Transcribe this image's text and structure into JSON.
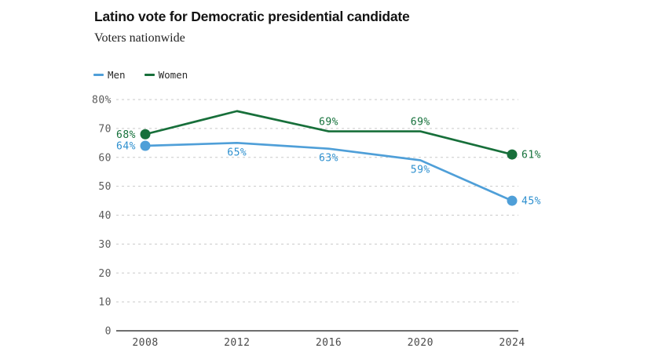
{
  "chart_data": {
    "type": "line",
    "title": "Latino vote for Democratic presidential candidate",
    "subtitle": "Voters nationwide",
    "x": [
      "2008",
      "2012",
      "2016",
      "2020",
      "2024"
    ],
    "series": [
      {
        "name": "Men",
        "color": "#4f9fd8",
        "label_color": "#2e90cf",
        "values": [
          64,
          65,
          63,
          59,
          45
        ],
        "point_labels": [
          "64%",
          "65%",
          "63%",
          "59%",
          "45%"
        ],
        "label_side": "below"
      },
      {
        "name": "Women",
        "color": "#176f3a",
        "label_color": "#14703a",
        "values": [
          68,
          76,
          69,
          69,
          61
        ],
        "point_labels": [
          "68%",
          null,
          "69%",
          "69%",
          "61%"
        ],
        "label_side": "above"
      }
    ],
    "ylim": [
      0,
      80
    ],
    "yticks": [
      0,
      10,
      20,
      30,
      40,
      50,
      60,
      70,
      80
    ],
    "ytick_labels": [
      "0",
      "10",
      "20",
      "30",
      "40",
      "50",
      "60",
      "70",
      "80%"
    ],
    "grid": "horizontal-dashed",
    "legend_position": "top-left",
    "axis_color": "#3f3f3f",
    "grid_color": "#c9c9c9",
    "tick_label_color": "#5a5a5a"
  }
}
